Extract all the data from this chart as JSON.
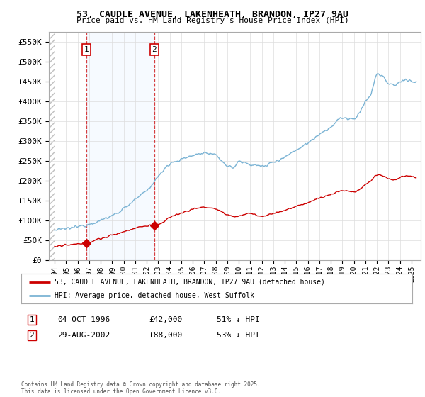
{
  "title_line1": "53, CAUDLE AVENUE, LAKENHEATH, BRANDON, IP27 9AU",
  "title_line2": "Price paid vs. HM Land Registry's House Price Index (HPI)",
  "hpi_label": "HPI: Average price, detached house, West Suffolk",
  "property_label": "53, CAUDLE AVENUE, LAKENHEATH, BRANDON, IP27 9AU (detached house)",
  "hpi_color": "#7ab3d4",
  "property_color": "#cc0000",
  "background_color": "#ffffff",
  "sale1_date_x": 1996.75,
  "sale1_price": 42000,
  "sale2_date_x": 2002.65,
  "sale2_price": 88000,
  "ylim": [
    0,
    575000
  ],
  "xlim_start": 1993.5,
  "xlim_end": 2025.8,
  "yticks": [
    0,
    50000,
    100000,
    150000,
    200000,
    250000,
    300000,
    350000,
    400000,
    450000,
    500000,
    550000
  ],
  "ytick_labels": [
    "£0",
    "£50K",
    "£100K",
    "£150K",
    "£200K",
    "£250K",
    "£300K",
    "£350K",
    "£400K",
    "£450K",
    "£500K",
    "£550K"
  ],
  "xtick_years": [
    1994,
    1995,
    1996,
    1997,
    1998,
    1999,
    2000,
    2001,
    2002,
    2003,
    2004,
    2005,
    2006,
    2007,
    2008,
    2009,
    2010,
    2011,
    2012,
    2013,
    2014,
    2015,
    2016,
    2017,
    2018,
    2019,
    2020,
    2021,
    2022,
    2023,
    2024,
    2025
  ],
  "footer": "Contains HM Land Registry data © Crown copyright and database right 2025.\nThis data is licensed under the Open Government Licence v3.0.",
  "legend_box_color": "#cc0000",
  "shade_color": "#ddeeff"
}
